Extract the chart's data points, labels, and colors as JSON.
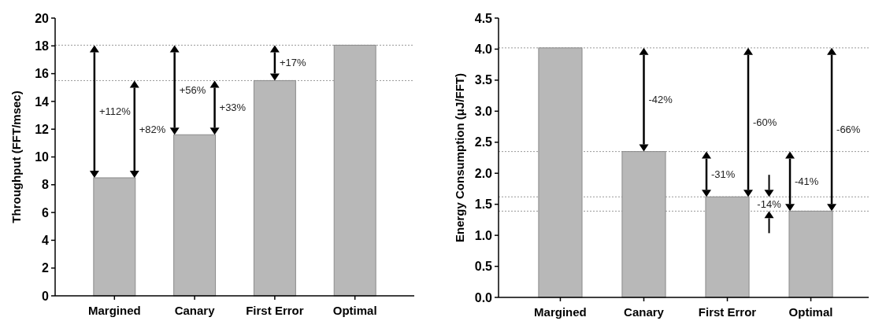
{
  "chart_data": [
    {
      "type": "bar",
      "ylabel": "Throughput (FFT/msec)",
      "categories": [
        "Margined",
        "Canary",
        "First Error",
        "Optimal"
      ],
      "values": [
        8.5,
        11.6,
        15.5,
        18.05
      ],
      "color": "#b8b8b8",
      "ylim": [
        0,
        20
      ],
      "yticks": [
        0,
        2,
        4,
        6,
        8,
        10,
        12,
        14,
        16,
        18,
        20
      ],
      "ref_lines": [
        {
          "axis": "y",
          "value": 18.05,
          "color": "#999999",
          "line_style": "dotted"
        },
        {
          "axis": "y",
          "value": 15.5,
          "color": "#999999",
          "line_style": "dotted"
        }
      ],
      "annotations": [
        "+112%",
        "+82%",
        "+56%",
        "+33%",
        "+17%"
      ]
    },
    {
      "type": "bar",
      "ylabel": "Energy Consumption (μJ/FFT)",
      "categories": [
        "Margined",
        "Canary",
        "First Error",
        "Optimal"
      ],
      "values": [
        4.02,
        2.35,
        1.62,
        1.39
      ],
      "color": "#b8b8b8",
      "ylim": [
        0,
        4.5
      ],
      "yticks": [
        {
          "value": 0,
          "label": "0.0"
        },
        0.5,
        {
          "value": 1,
          "label": "1.0"
        },
        1.5,
        {
          "value": 2,
          "label": "2.0"
        },
        2.5,
        {
          "value": 3,
          "label": "3.0"
        },
        3.5,
        {
          "value": 4,
          "label": "4.0"
        },
        4.5
      ],
      "ref_lines": [
        {
          "axis": "y",
          "value": 4.02,
          "color": "#999999",
          "line_style": "dotted"
        },
        {
          "axis": "y",
          "value": 2.35,
          "color": "#999999",
          "line_style": "dotted"
        },
        {
          "axis": "y",
          "value": 1.62,
          "color": "#999999",
          "line_style": "dotted"
        },
        {
          "axis": "y",
          "value": 1.39,
          "color": "#999999",
          "line_style": "dotted"
        }
      ],
      "annotations": [
        "-42%",
        "-60%",
        "-66%",
        "-31%",
        "-41%",
        "-14%"
      ]
    }
  ]
}
